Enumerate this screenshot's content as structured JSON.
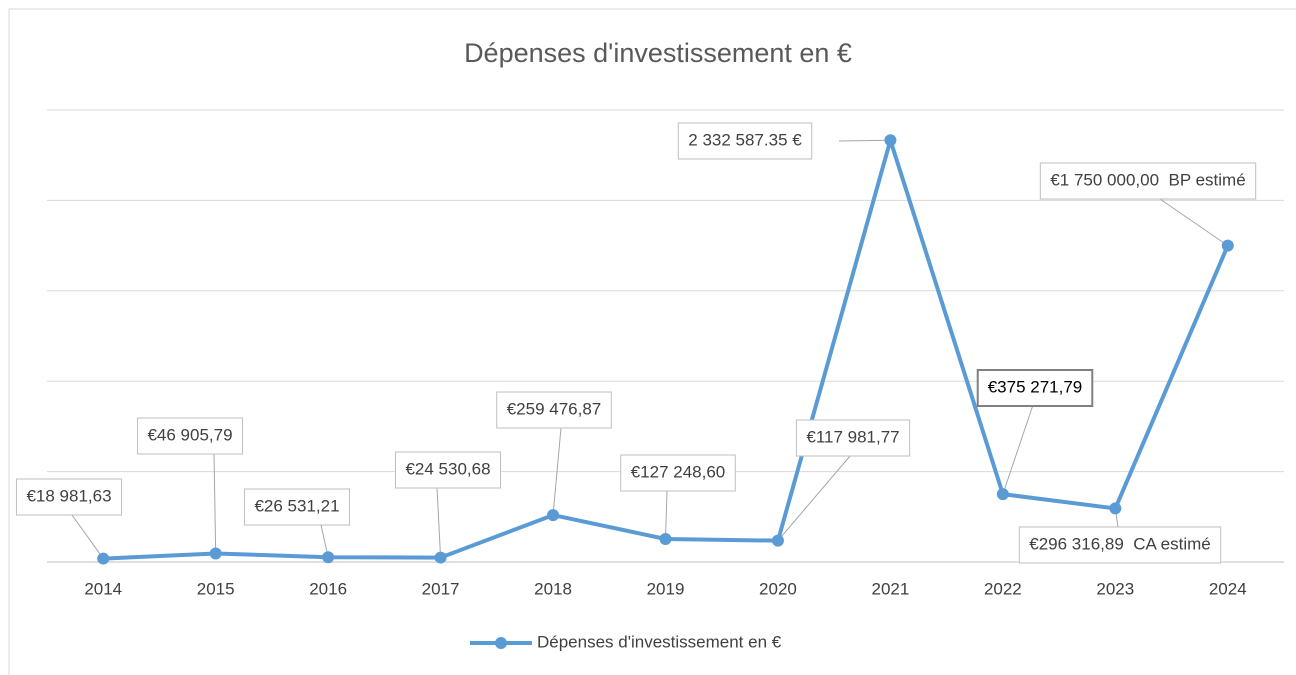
{
  "chart_data": {
    "type": "line",
    "title": "Dépenses d'investissement en €",
    "categories": [
      "2014",
      "2015",
      "2016",
      "2017",
      "2018",
      "2019",
      "2020",
      "2021",
      "2022",
      "2023",
      "2024"
    ],
    "series": [
      {
        "name": "Dépenses d'investissement en €",
        "color": "#5b9bd5",
        "values": [
          18981.63,
          46905.79,
          26531.21,
          24530.68,
          259476.87,
          127248.6,
          117981.77,
          2332587.35,
          375271.79,
          296316.89,
          1750000
        ],
        "value_labels": [
          "€18 981,63",
          "€46 905,79",
          "€26 531,21",
          "€24 530,68",
          "€259 476,87",
          "€127 248,60",
          "€117 981,77",
          "2 332 587.35 €",
          "€375 271,79",
          "€296 316,89  CA estimé",
          "€1 750 000,00  BP estimé"
        ]
      }
    ],
    "ylim": [
      0,
      2500000
    ],
    "yticks": [
      0,
      500000,
      1000000,
      1500000,
      2000000,
      2500000
    ],
    "grid": true,
    "legend": "bottom"
  }
}
